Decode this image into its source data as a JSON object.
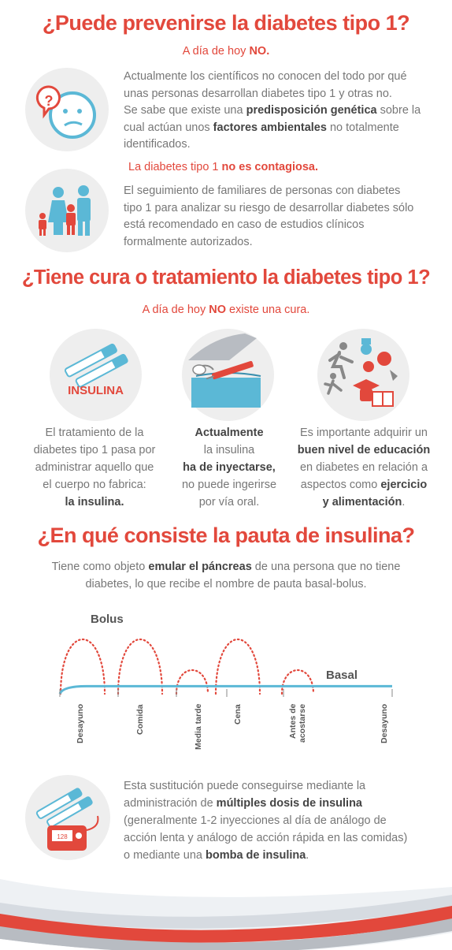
{
  "s1": {
    "title": "¿Puede prevenirse la diabetes tipo 1?",
    "sub_a": "A día de hoy ",
    "sub_b": "NO.",
    "p1_l1": "Actualmente los científicos no conocen del todo por qué",
    "p1_l2": "unas personas desarrollan diabetes tipo 1 y otras no.",
    "p1_l3": "Se sabe que existe una ",
    "p1_l3b": "predisposición genética",
    "p1_l3c": " sobre la",
    "p1_l4": "cual actúan unos ",
    "p1_l4b": "factores ambientales",
    "p1_l4c": " no totalmente",
    "p1_l5": "identificados.",
    "note_a": "La diabetes tipo 1 ",
    "note_b": "no es contagiosa.",
    "p2_l1": "El seguimiento de familiares de personas con diabetes",
    "p2_l2": "tipo 1 para analizar su riesgo de desarrollar diabetes sólo",
    "p2_l3": "está recomendado en caso de estudios clínicos",
    "p2_l4": "formalmente autorizados."
  },
  "s2": {
    "title": "¿Tiene cura o tratamiento la diabetes tipo 1?",
    "sub_a": "A día de hoy ",
    "sub_b": "NO",
    "sub_c": " existe una cura.",
    "insulina_label": "INSULINA",
    "c1_l1": "El tratamiento de la",
    "c1_l2": "diabetes tipo 1 pasa por",
    "c1_l3": "administrar aquello que",
    "c1_l4": "el cuerpo no fabrica:",
    "c1_l5": "la insulina.",
    "c2_l1": "Actualmente",
    "c2_l2": "la insulina",
    "c2_l3": "ha de inyectarse,",
    "c2_l4": "no puede ingerirse",
    "c2_l5": "por vía oral.",
    "c3_l1": "Es importante adquirir un",
    "c3_l2": "buen nivel de educación",
    "c3_l3": "en diabetes en relación a",
    "c3_l4": "aspectos como ",
    "c3_l4b": "ejercicio",
    "c3_l5": "y alimentación",
    "c3_l5b": "."
  },
  "s3": {
    "title": "¿En qué consiste la pauta de insulina?",
    "intro_l1a": "Tiene como objeto ",
    "intro_l1b": "emular el páncreas",
    "intro_l1c": " de una persona que no tiene",
    "intro_l2": "diabetes, lo que recibe el nombre de pauta basal-bolus.",
    "p_l1": "Esta sustitución puede conseguirse mediante la",
    "p_l2a": "administración de ",
    "p_l2b": "múltiples dosis de insulina",
    "p_l3": "(generalmente 1-2 inyecciones al día de análogo de",
    "p_l4": "acción lenta y análogo de acción rápida en las comidas)",
    "p_l5a": "o mediante una ",
    "p_l5b": "bomba de insulina",
    "p_l5c": ".",
    "pump_display": "128"
  },
  "chart_data": {
    "type": "line",
    "categories": [
      "Desayuno",
      "Comida",
      "Media tarde",
      "Cena",
      "Antes de acostarse",
      "Desayuno"
    ],
    "series": [
      {
        "name": "Bolus",
        "peaks": [
          1,
          1,
          0.35,
          1,
          0.35
        ],
        "style": "dotted"
      },
      {
        "name": "Basal",
        "level": 0.12,
        "style": "solid"
      }
    ],
    "colors": {
      "bolus": "#e2483c",
      "basal": "#5bb8d6"
    }
  }
}
